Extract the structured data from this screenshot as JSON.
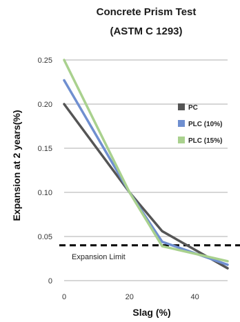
{
  "chart_data": {
    "type": "line",
    "title": "Concrete Prism Test",
    "subtitle": "(ASTM C 1293)",
    "xlabel": "Slag (%)",
    "ylabel": "Expansion at 2 years(%)",
    "x_ticks": [
      "0",
      "20",
      "40"
    ],
    "y_ticks": [
      "0",
      "0.05",
      "0.10",
      "0.15",
      "0.20",
      "0.25"
    ],
    "xlim": [
      0,
      50
    ],
    "ylim": [
      0,
      0.25
    ],
    "grid": "horizontal",
    "legend_position": "right",
    "series": [
      {
        "name": "PC",
        "color": "#555555",
        "x": [
          0,
          20,
          30,
          50
        ],
        "y": [
          0.2,
          0.1,
          0.056,
          0.014
        ]
      },
      {
        "name": "PLC (10%)",
        "color": "#6f8fd0",
        "x": [
          0,
          20,
          30,
          50
        ],
        "y": [
          0.227,
          0.1,
          0.044,
          0.018
        ]
      },
      {
        "name": "PLC (15%)",
        "color": "#a9d18e",
        "x": [
          0,
          20,
          30,
          50
        ],
        "y": [
          0.25,
          0.1,
          0.039,
          0.022
        ]
      }
    ],
    "reference_line": {
      "label": "Expansion Limit",
      "y": 0.04
    }
  }
}
